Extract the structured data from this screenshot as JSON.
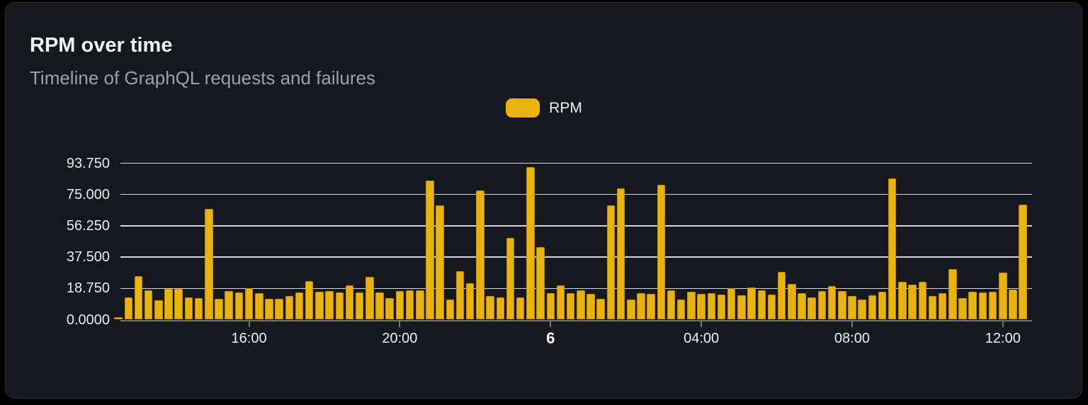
{
  "card": {
    "title": "RPM over time",
    "subtitle": "Timeline of GraphQL requests and failures"
  },
  "legend": {
    "items": [
      {
        "label": "RPM",
        "color": "#e9b20d"
      }
    ]
  },
  "chart_data": {
    "type": "bar",
    "title": "RPM over time",
    "subtitle": "Timeline of GraphQL requests and failures",
    "legend_position": "top-center",
    "grid": "horizontal",
    "ylim": [
      0,
      93.75
    ],
    "y_ticks": [
      {
        "label": "0.0000",
        "value": 0
      },
      {
        "label": "18.750",
        "value": 18.75
      },
      {
        "label": "37.500",
        "value": 37.5
      },
      {
        "label": "56.250",
        "value": 56.25
      },
      {
        "label": "75.000",
        "value": 75
      },
      {
        "label": "93.750",
        "value": 93.75
      }
    ],
    "x_ticks": [
      {
        "label": "16:00",
        "bar_index": 13,
        "bold": false
      },
      {
        "label": "20:00",
        "bar_index": 28,
        "bold": false
      },
      {
        "label": "6",
        "bar_index": 43,
        "bold": true
      },
      {
        "label": "04:00",
        "bar_index": 58,
        "bold": false
      },
      {
        "label": "08:00",
        "bar_index": 73,
        "bold": false
      },
      {
        "label": "12:00",
        "bar_index": 88,
        "bold": false
      }
    ],
    "series": [
      {
        "name": "RPM",
        "color": "#e9b20d",
        "values": [
          1.5,
          13.4,
          26.3,
          17.7,
          11.6,
          18.5,
          18.5,
          13.4,
          13,
          66.4,
          12.5,
          17.2,
          16.4,
          19,
          15.7,
          12.4,
          12.7,
          14,
          16.3,
          23.3,
          16.8,
          17.2,
          16.4,
          20.5,
          16.2,
          25.6,
          16.2,
          12.9,
          17.2,
          17.5,
          17.5,
          83.2,
          68.5,
          12,
          29,
          22,
          77.5,
          14.2,
          13.4,
          49.1,
          13.5,
          91.5,
          43.5,
          15.8,
          20.5,
          15.7,
          17.5,
          15.3,
          12.5,
          68.4,
          78.5,
          12,
          16.1,
          15.4,
          81,
          17.8,
          12,
          16.9,
          15.6,
          16,
          15.1,
          18.7,
          14.6,
          19.3,
          17.7,
          15,
          28.7,
          21.6,
          15.8,
          13.3,
          17.2,
          20.3,
          17,
          14.2,
          12,
          14.7,
          16.6,
          84.7,
          22.9,
          21,
          22.6,
          14.3,
          16,
          30.4,
          12.9,
          16.9,
          16.2,
          16.6,
          28.3,
          18.2,
          68.8
        ]
      }
    ],
    "colors": {
      "page_background": "#000000",
      "card_background": "#16181d",
      "card_border": "#2c2f36",
      "bar": "#e9b20d",
      "gridline": "#dde1e9",
      "axis_line": "#70757c",
      "title_text": "#f3f4f6",
      "subtitle_text": "#9ba1ab",
      "axis_label_text": "#e9ebef"
    }
  }
}
